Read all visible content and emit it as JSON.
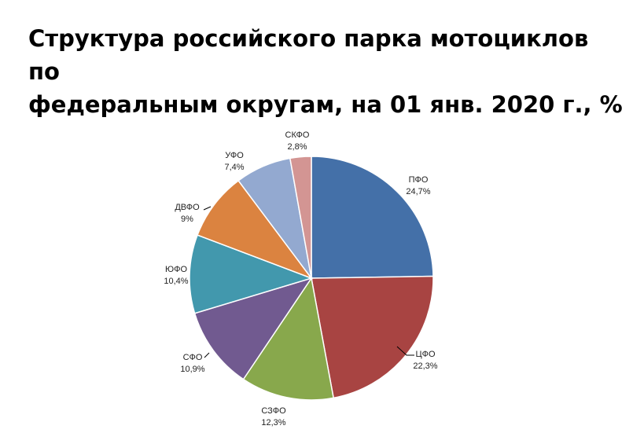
{
  "chart_data": {
    "type": "pie",
    "title_lines": [
      "Структура российского парка мотоциклов по",
      "федеральным округам, на 01 янв. 2020 г., %"
    ],
    "slices": [
      {
        "name": "ПФО",
        "value": 24.7,
        "label": "24,7%",
        "color": "#4470a8"
      },
      {
        "name": "ЦФО",
        "value": 22.3,
        "label": "22,3%",
        "color": "#a84442"
      },
      {
        "name": "СЗФО",
        "value": 12.3,
        "label": "12,3%",
        "color": "#88a84c"
      },
      {
        "name": "СФО",
        "value": 10.9,
        "label": "10,9%",
        "color": "#715a90"
      },
      {
        "name": "ЮФО",
        "value": 10.4,
        "label": "10,4%",
        "color": "#4298ad"
      },
      {
        "name": "ДВФО",
        "value": 9,
        "label": "9%",
        "color": "#db8340"
      },
      {
        "name": "УФО",
        "value": 7.4,
        "label": "7,4%",
        "color": "#93a9d0"
      },
      {
        "name": "СКФО",
        "value": 2.8,
        "label": "2,8%",
        "color": "#d39593"
      }
    ]
  }
}
